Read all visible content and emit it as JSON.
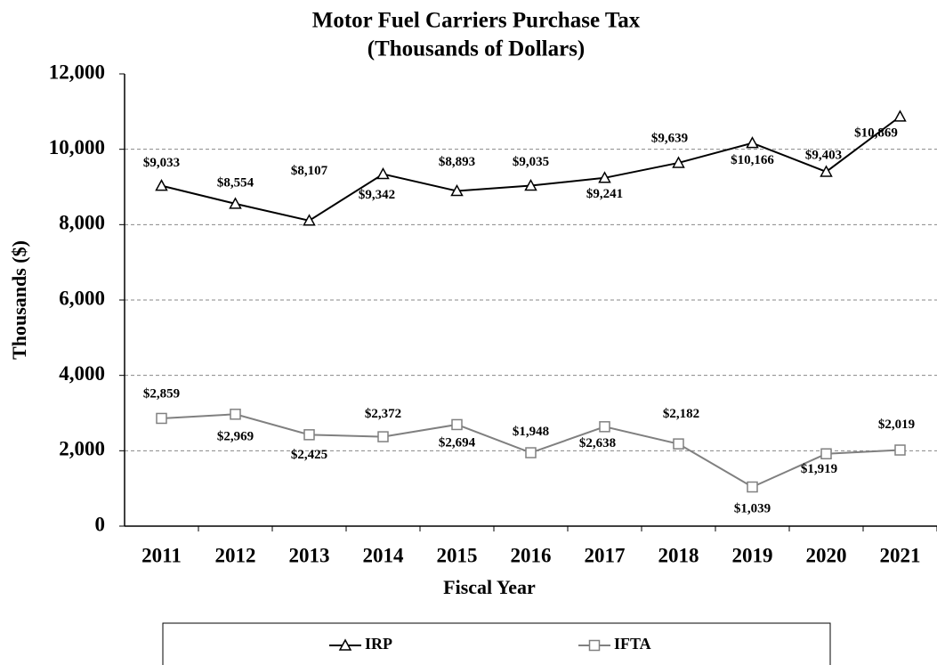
{
  "chart_data": {
    "type": "line",
    "title": [
      "Motor Fuel Carriers  Purchase Tax",
      "(Thousands  of Dollars)"
    ],
    "x_label": "Fiscal Year",
    "y_label": "Thousands ($)",
    "categories": [
      "2011",
      "2012",
      "2013",
      "2014",
      "2015",
      "2016",
      "2017",
      "2018",
      "2019",
      "2020",
      "2021"
    ],
    "series": [
      {
        "name": "IRP",
        "color": "#000000",
        "marker": "triangle",
        "values": [
          9033,
          8554,
          8107,
          9342,
          8893,
          9035,
          9241,
          9639,
          10166,
          9403,
          10869
        ],
        "value_labels": [
          "$9,033",
          "$8,554",
          "$8,107",
          "$9,342",
          "$8,893",
          "$9,035",
          "$9,241",
          "$9,639",
          "$10,166",
          "$9,403",
          "$10,869"
        ]
      },
      {
        "name": "IFTA",
        "color": "#808080",
        "marker": "square",
        "values": [
          2859,
          2969,
          2425,
          2372,
          2694,
          1948,
          2638,
          2182,
          1039,
          1919,
          2019
        ],
        "value_labels": [
          "$2,859",
          "$2,969",
          "$2,425",
          "$2,372",
          "$2,694",
          "$1,948",
          "$2,638",
          "$2,182",
          "$1,039",
          "$1,919",
          "$2,019"
        ]
      }
    ],
    "ylim": [
      0,
      12000
    ],
    "yticks": [
      0,
      {
        "value": 2000,
        "label": "2,000"
      },
      {
        "value": 4000,
        "label": "4,000"
      },
      {
        "value": 6000,
        "label": "6,000"
      },
      {
        "value": 8000,
        "label": "8,000"
      },
      {
        "value": 10000,
        "label": "10,000"
      },
      {
        "value": 12000,
        "label": "12,000"
      }
    ],
    "grid": true,
    "legend": "bottom"
  }
}
